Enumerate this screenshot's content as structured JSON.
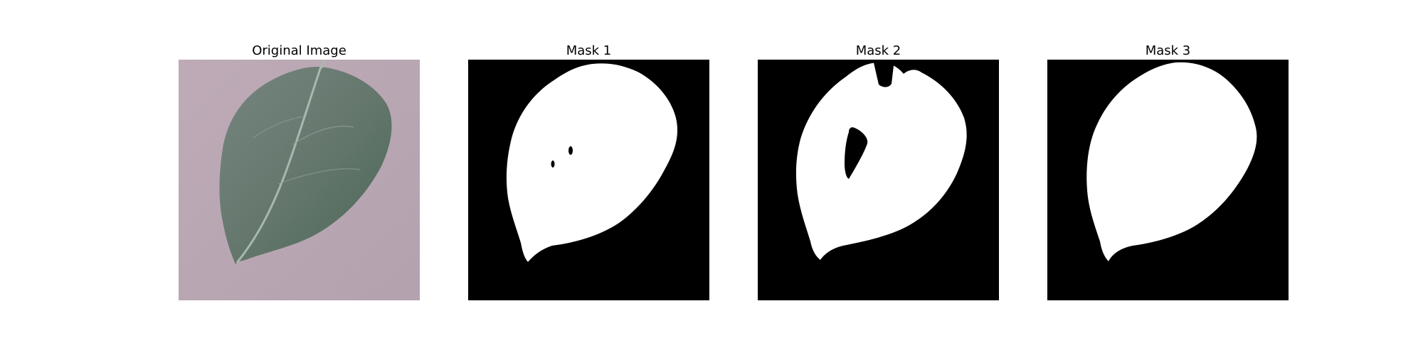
{
  "panels": [
    {
      "title": "Original Image",
      "content": "leaf-photo"
    },
    {
      "title": "Mask 1",
      "content": "binary-mask"
    },
    {
      "title": "Mask 2",
      "content": "binary-mask"
    },
    {
      "title": "Mask 3",
      "content": "binary-mask"
    }
  ],
  "colors": {
    "background": "#ffffff",
    "mask_background": "#000000",
    "mask_foreground": "#ffffff",
    "photo_background": "#b9a5b2",
    "leaf": "#5f7268",
    "leaf_vein": "#a7b8ad"
  }
}
